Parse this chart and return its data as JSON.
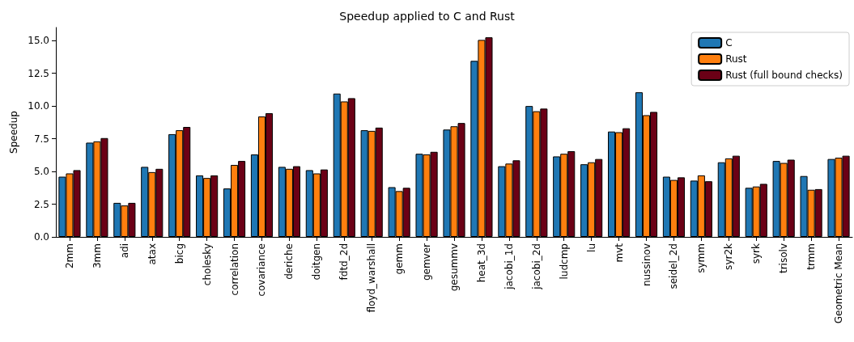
{
  "chart_data": {
    "type": "bar",
    "title": "Speedup applied to C and Rust",
    "ylabel": "Speedup",
    "categories": [
      "2mm",
      "3mm",
      "adi",
      "atax",
      "bicg",
      "cholesky",
      "correlation",
      "covariance",
      "deriche",
      "doitgen",
      "fdtd_2d",
      "floyd_warshall",
      "gemm",
      "gemver",
      "gesummv",
      "heat_3d",
      "jacobi_1d",
      "jacobi_2d",
      "ludcmp",
      "lu",
      "mvt",
      "nussinov",
      "seidel_2d",
      "symm",
      "syr2k",
      "syrk",
      "trisolv",
      "trmm",
      "Geometric Mean"
    ],
    "series": [
      {
        "name": "C",
        "color": "#1f77b4",
        "values": [
          4.6,
          7.2,
          2.6,
          5.35,
          7.85,
          4.7,
          3.7,
          6.3,
          5.35,
          5.1,
          10.95,
          8.15,
          3.8,
          6.35,
          8.2,
          13.45,
          5.4,
          10.0,
          6.15,
          5.55,
          8.05,
          11.05,
          4.6,
          4.3,
          5.7,
          3.75,
          5.8,
          4.65,
          5.95
        ]
      },
      {
        "name": "Rust",
        "color": "#ff7f0e",
        "values": [
          4.85,
          7.3,
          2.4,
          4.95,
          8.15,
          4.5,
          5.5,
          9.2,
          5.2,
          4.85,
          10.35,
          8.1,
          3.5,
          6.3,
          8.45,
          15.05,
          5.6,
          9.6,
          6.35,
          5.7,
          8.0,
          9.3,
          4.35,
          4.7,
          6.0,
          3.85,
          5.65,
          3.6,
          6.05
        ]
      },
      {
        "name": "Rust (full bound checks)",
        "color": "#6b0016",
        "values": [
          5.1,
          7.55,
          2.6,
          5.2,
          8.4,
          4.7,
          5.8,
          9.45,
          5.4,
          5.15,
          10.6,
          8.35,
          3.75,
          6.5,
          8.7,
          15.25,
          5.85,
          9.8,
          6.55,
          5.95,
          8.3,
          9.55,
          4.55,
          4.25,
          6.2,
          4.05,
          5.9,
          3.65,
          6.2
        ]
      }
    ],
    "ylim": [
      0,
      16
    ],
    "yticks": [
      {
        "value": 0,
        "label": "0.0"
      },
      {
        "value": 2.5,
        "label": "2.5"
      },
      {
        "value": 5,
        "label": "5.0"
      },
      {
        "value": 7.5,
        "label": "7.5"
      },
      {
        "value": 10,
        "label": "10.0"
      },
      {
        "value": 12.5,
        "label": "12.5"
      },
      {
        "value": 15,
        "label": "15.0"
      }
    ],
    "grid": false,
    "legend": "top right"
  }
}
